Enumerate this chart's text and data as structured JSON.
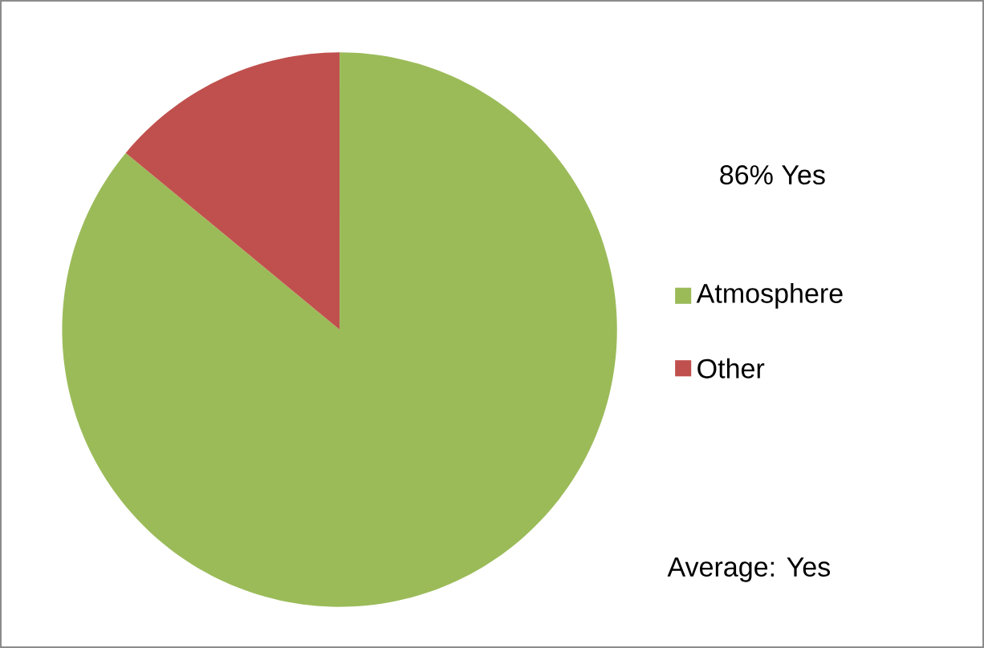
{
  "chart_data": {
    "type": "pie",
    "categories": [
      "Atmosphere",
      "Other"
    ],
    "values": [
      86,
      14
    ],
    "colors": [
      "#9bbb59",
      "#c0504d"
    ],
    "legend": "right",
    "annotations": [
      "86% Yes",
      "Average: Yes"
    ]
  }
}
